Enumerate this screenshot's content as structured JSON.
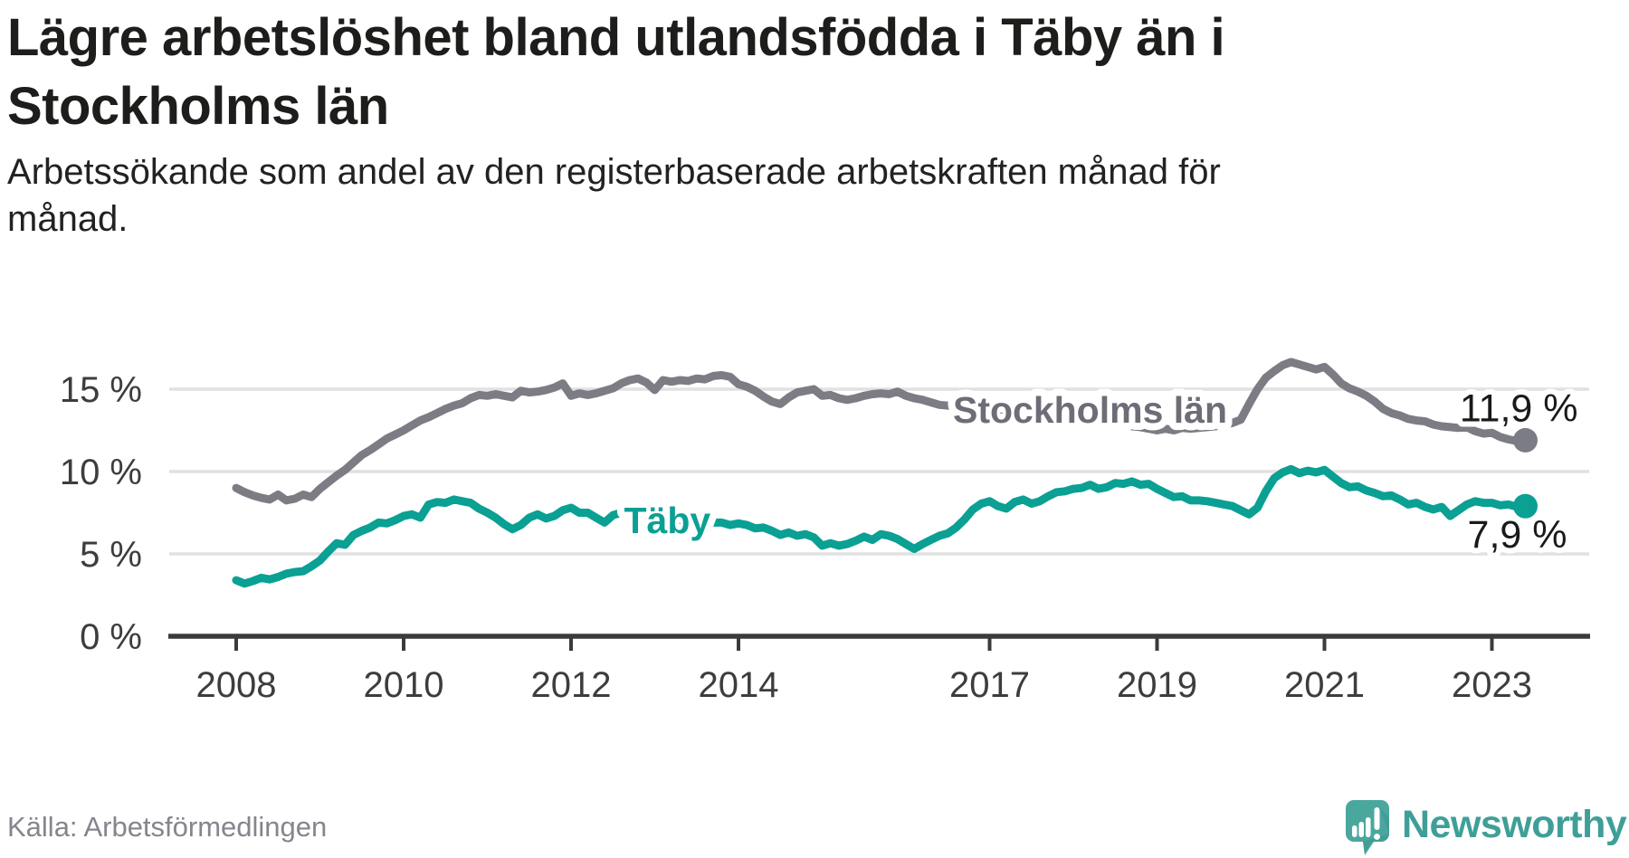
{
  "title": {
    "line1": "Lägre arbetslöshet bland utlandsfödda i Täby än i",
    "line2": "Stockholms län"
  },
  "subtitle": {
    "line1": "Arbetssökande som andel av den registerbaserade arbetskraften månad för",
    "line2": "månad."
  },
  "source_text": "Källa: Arbetsförmedlingen",
  "branding": {
    "name": "Newsworthy"
  },
  "colors": {
    "title": "#1d1d1b",
    "axis_text": "#3d3d3d",
    "axis_line": "#3b3b3b",
    "gridline": "#e1e1e1",
    "stockholm_line": "#7c7c84",
    "stockholm_label": "#6d6d77",
    "taby_line": "#0aa093",
    "value_label": "#1a1a1a",
    "source": "#85858d",
    "logo_teal": "#4aa79e",
    "logo_teal_dark": "#3e968f",
    "brand_text": "#3f9f98"
  },
  "chart_data": {
    "type": "line",
    "title": "Lägre arbetslöshet bland utlandsfödda i Täby än i Stockholms län",
    "xlabel": "",
    "ylabel": "Arbetssökande som andel av den registerbaserade arbetskraften",
    "unit": "%",
    "x_range": [
      2007.9,
      2023.45
    ],
    "ylim": [
      0,
      17.8
    ],
    "grid": "horizontal",
    "legend_position": "inline-labels",
    "x_axis": {
      "ticks": [
        {
          "value": 2008,
          "label": "2008"
        },
        {
          "value": 2010,
          "label": "2010"
        },
        {
          "value": 2012,
          "label": "2012"
        },
        {
          "value": 2014,
          "label": "2014"
        },
        {
          "value": 2017,
          "label": "2017"
        },
        {
          "value": 2019,
          "label": "2019"
        },
        {
          "value": 2021,
          "label": "2021"
        },
        {
          "value": 2023,
          "label": "2023"
        }
      ]
    },
    "y_axis": {
      "ticks": [
        {
          "value": 0,
          "label": "0 %"
        },
        {
          "value": 5,
          "label": "5 %"
        },
        {
          "value": 10,
          "label": "10 %"
        },
        {
          "value": 15,
          "label": "15 %"
        }
      ]
    },
    "series": [
      {
        "name": "Stockholms län",
        "color": "#7c7c84",
        "label_color": "#6d6d77",
        "end_label": "11,9 %",
        "end_value": 11.9,
        "label_anchor": {
          "t": 2018.2,
          "v": 13.8
        },
        "start": 2008.0,
        "step": 0.1,
        "values": [
          9.0,
          8.75,
          8.55,
          8.4,
          8.3,
          8.6,
          8.25,
          8.35,
          8.6,
          8.45,
          8.95,
          9.35,
          9.75,
          10.1,
          10.55,
          11.0,
          11.3,
          11.65,
          12.0,
          12.25,
          12.5,
          12.8,
          13.1,
          13.3,
          13.55,
          13.8,
          14.0,
          14.15,
          14.45,
          14.65,
          14.6,
          14.7,
          14.6,
          14.5,
          14.9,
          14.8,
          14.85,
          14.95,
          15.1,
          15.35,
          14.6,
          14.75,
          14.65,
          14.75,
          14.9,
          15.05,
          15.35,
          15.55,
          15.65,
          15.4,
          14.95,
          15.55,
          15.45,
          15.55,
          15.5,
          15.65,
          15.6,
          15.8,
          15.85,
          15.75,
          15.3,
          15.15,
          14.9,
          14.55,
          14.25,
          14.1,
          14.5,
          14.8,
          14.9,
          15.0,
          14.6,
          14.65,
          14.45,
          14.35,
          14.45,
          14.6,
          14.7,
          14.75,
          14.7,
          14.85,
          14.6,
          14.45,
          14.35,
          14.2,
          14.05,
          14.0,
          13.95,
          13.9,
          13.85,
          13.8,
          13.75,
          13.7,
          13.65,
          13.6,
          13.55,
          13.5,
          13.45,
          13.4,
          13.35,
          13.3,
          13.2,
          13.15,
          13.1,
          13.0,
          12.95,
          12.9,
          12.85,
          12.75,
          12.7,
          12.6,
          12.5,
          12.6,
          12.5,
          12.65,
          12.6,
          12.65,
          12.7,
          12.75,
          12.85,
          12.95,
          13.15,
          14.1,
          15.0,
          15.7,
          16.1,
          16.45,
          16.65,
          16.5,
          16.35,
          16.2,
          16.35,
          15.9,
          15.35,
          15.05,
          14.85,
          14.6,
          14.25,
          13.8,
          13.55,
          13.4,
          13.2,
          13.1,
          13.05,
          12.85,
          12.75,
          12.7,
          12.65,
          12.7,
          12.45,
          12.3,
          12.35,
          12.1,
          11.95,
          11.85,
          11.9
        ]
      },
      {
        "name": "Täby",
        "color": "#0aa093",
        "label_color": "#0aa093",
        "end_label": "7,9 %",
        "end_value": 7.9,
        "label_anchor": {
          "t": 2013.15,
          "v": 7.1
        },
        "start": 2008.0,
        "step": 0.1,
        "values": [
          3.4,
          3.2,
          3.35,
          3.55,
          3.45,
          3.6,
          3.8,
          3.9,
          3.95,
          4.25,
          4.6,
          5.15,
          5.65,
          5.55,
          6.15,
          6.4,
          6.6,
          6.9,
          6.85,
          7.05,
          7.3,
          7.4,
          7.2,
          8.0,
          8.15,
          8.1,
          8.3,
          8.2,
          8.1,
          7.75,
          7.5,
          7.2,
          6.8,
          6.5,
          6.75,
          7.2,
          7.4,
          7.15,
          7.3,
          7.65,
          7.8,
          7.5,
          7.5,
          7.2,
          6.9,
          7.35,
          7.5,
          7.55,
          7.45,
          7.3,
          7.2,
          7.1,
          7.05,
          7.1,
          7.0,
          6.95,
          6.9,
          6.9,
          6.9,
          6.75,
          6.85,
          6.75,
          6.55,
          6.6,
          6.4,
          6.15,
          6.3,
          6.1,
          6.2,
          6.0,
          5.5,
          5.65,
          5.5,
          5.6,
          5.8,
          6.05,
          5.85,
          6.2,
          6.1,
          5.9,
          5.6,
          5.3,
          5.6,
          5.85,
          6.1,
          6.25,
          6.6,
          7.1,
          7.7,
          8.05,
          8.2,
          7.9,
          7.75,
          8.15,
          8.3,
          8.05,
          8.2,
          8.5,
          8.75,
          8.8,
          8.95,
          9.0,
          9.2,
          8.95,
          9.05,
          9.3,
          9.25,
          9.4,
          9.2,
          9.25,
          8.95,
          8.7,
          8.45,
          8.5,
          8.25,
          8.25,
          8.2,
          8.1,
          8.0,
          7.9,
          7.65,
          7.4,
          7.8,
          8.8,
          9.6,
          9.95,
          10.15,
          9.9,
          10.05,
          9.95,
          10.1,
          9.7,
          9.3,
          9.05,
          9.1,
          8.85,
          8.7,
          8.5,
          8.55,
          8.3,
          8.0,
          8.1,
          7.85,
          7.7,
          7.85,
          7.3,
          7.65,
          8.0,
          8.2,
          8.1,
          8.1,
          7.95,
          8.0,
          7.85,
          7.9
        ]
      }
    ]
  }
}
